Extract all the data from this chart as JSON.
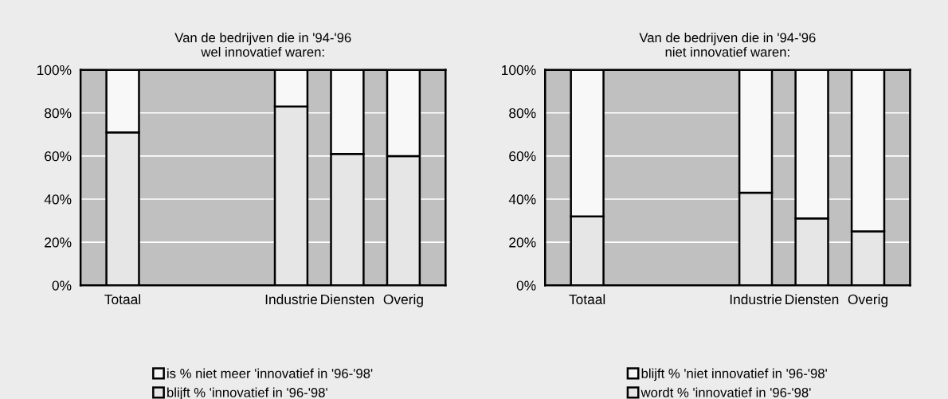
{
  "chart_data": [
    {
      "type": "bar",
      "title": "Van de bedrijven die in '94-'96\nwel innovatief waren:",
      "categories": [
        "Totaal",
        null,
        null,
        "Industrie",
        "Diensten",
        "Overig"
      ],
      "stacked": true,
      "series": [
        {
          "name": "blijft % 'innovatief in '96-'98'",
          "color": "#e6e6e6",
          "values": [
            71,
            null,
            null,
            83,
            61,
            60
          ]
        },
        {
          "name": "is % niet meer 'innovatief in '96-'98'",
          "color": "#f8f8f8",
          "values": [
            29,
            null,
            null,
            17,
            39,
            40
          ]
        }
      ],
      "ylim": [
        0,
        100
      ],
      "yticks": [
        {
          "value": 0,
          "label": "0%"
        },
        {
          "value": 20,
          "label": "20%"
        },
        {
          "value": 40,
          "label": "40%"
        },
        {
          "value": 60,
          "label": "60%"
        },
        {
          "value": 80,
          "label": "80%"
        },
        {
          "value": 100,
          "label": "100%"
        }
      ],
      "grid": "y",
      "legend": "bottom"
    },
    {
      "type": "bar",
      "title": "Van de bedrijven die in '94-'96\nniet innovatief waren:",
      "categories": [
        "Totaal",
        null,
        null,
        "Industrie",
        "Diensten",
        "Overig"
      ],
      "stacked": true,
      "series": [
        {
          "name": "wordt % 'innovatief in '96-'98'",
          "color": "#e6e6e6",
          "values": [
            32,
            null,
            null,
            43,
            31,
            25
          ]
        },
        {
          "name": "blijft % 'niet innovatief in '96-'98'",
          "color": "#f8f8f8",
          "values": [
            68,
            null,
            null,
            57,
            69,
            75
          ]
        }
      ],
      "ylim": [
        0,
        100
      ],
      "yticks": [
        {
          "value": 0,
          "label": "0%"
        },
        {
          "value": 20,
          "label": "20%"
        },
        {
          "value": 40,
          "label": "40%"
        },
        {
          "value": 60,
          "label": "60%"
        },
        {
          "value": 80,
          "label": "80%"
        },
        {
          "value": 100,
          "label": "100%"
        }
      ],
      "grid": "y",
      "legend": "bottom"
    }
  ]
}
